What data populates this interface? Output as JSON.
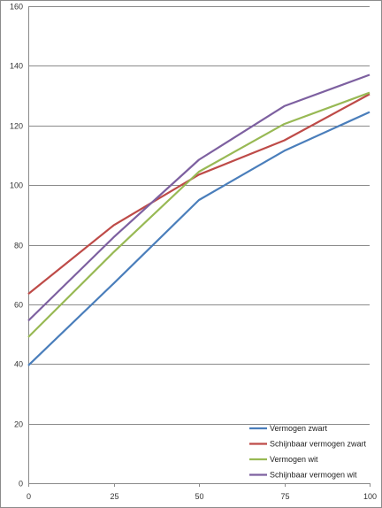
{
  "chart_data": {
    "type": "line",
    "title": "",
    "xlabel": "",
    "ylabel": "",
    "x": [
      0,
      25,
      50,
      75,
      100
    ],
    "xticks": [
      "0",
      "25",
      "50",
      "75",
      "100"
    ],
    "yticks": [
      "0",
      "20",
      "40",
      "60",
      "80",
      "100",
      "120",
      "140",
      "160"
    ],
    "xlim": [
      0,
      100
    ],
    "ylim": [
      0,
      160
    ],
    "grid": "horizontal",
    "legend_position": "bottom-right",
    "series": [
      {
        "name": "Vermogen zwart",
        "color": "#4a7ebb",
        "values": [
          39.5,
          67,
          95,
          111.5,
          124.5
        ]
      },
      {
        "name": "Schijnbaar vermogen zwart",
        "color": "#be4b48",
        "values": [
          63.5,
          86.5,
          103.5,
          115,
          130.5
        ]
      },
      {
        "name": "Vermogen wit",
        "color": "#98b954",
        "values": [
          49,
          77.5,
          104.5,
          120.5,
          131
        ]
      },
      {
        "name": "Schijnbaar vermogen wit",
        "color": "#7d60a0",
        "values": [
          54.5,
          82.5,
          108.5,
          126.5,
          137
        ]
      }
    ]
  }
}
